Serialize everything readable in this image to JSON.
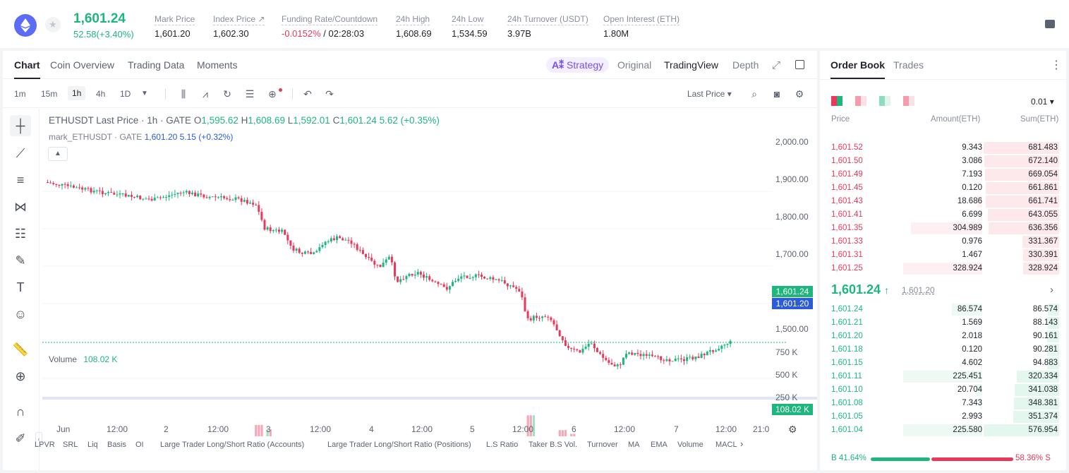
{
  "ticker": {
    "last_price": "1,601.24",
    "change": "52.58(+3.40%)",
    "stats": [
      {
        "label": "Mark Price",
        "value": "1,601.20"
      },
      {
        "label": "Index Price ↗",
        "value": "1,602.30"
      },
      {
        "label": "Funding Rate/Countdown",
        "value_neg": "-0.0152%",
        "value": " / 02:28:03"
      },
      {
        "label": "24h High",
        "value": "1,608.69"
      },
      {
        "label": "24h Low",
        "value": "1,534.59"
      },
      {
        "label": "24h Turnover (USDT)",
        "value": "3.97B"
      },
      {
        "label": "Open Interest (ETH)",
        "value": "1.80M"
      }
    ]
  },
  "chart_tabs": [
    "Chart",
    "Coin Overview",
    "Trading Data",
    "Moments"
  ],
  "strategy_label": "Strategy",
  "view_tabs": [
    "Original",
    "TradingView",
    "Depth"
  ],
  "timeframes": [
    "1m",
    "15m",
    "1h",
    "4h",
    "1D"
  ],
  "price_type": "Last Price",
  "legend": {
    "symbol": "ETHUSDT Last Price · 1h · GATE",
    "o_label": "O",
    "o": "1,595.62",
    "h_label": "H",
    "h": "1,608.69",
    "l_label": "L",
    "l": "1,592.01",
    "c_label": "C",
    "c": "1,601.24",
    "chg": "5.62 (+0.35%)",
    "mark_text": "mark_ETHUSDT · GATE",
    "mark_vals": "1,601.20  5.15  (+0.32%)"
  },
  "volume_legend": {
    "label": "Volume",
    "value": "108.02 K"
  },
  "price_axis": [
    "2,000.00",
    "1,900.00",
    "1,800.00",
    "1,700.00",
    "1,500.00"
  ],
  "volume_axis": [
    "750 K",
    "500 K",
    "250 K"
  ],
  "price_tags": {
    "last": "1,601.24",
    "mark": "1,601.20",
    "volume": "108.02 K"
  },
  "time_axis": [
    "Jun",
    "12:00",
    "2",
    "12:00",
    "3",
    "12:00",
    "4",
    "12:00",
    "5",
    "12:00",
    "6",
    "12:00",
    "7",
    "12:00",
    "21:0"
  ],
  "indicators": [
    "LPVR",
    "SRL",
    "Liq",
    "Basis",
    "OI",
    "Large Trader Long/Short Ratio (Accounts)",
    "Large Trader Long/Short Ratio (Positions)",
    "L.S Ratio",
    "Taker B.S Vol.",
    "Turnover",
    "MA",
    "EMA",
    "Volume",
    "MACL"
  ],
  "order_book": {
    "tabs": [
      "Order Book",
      "Trades"
    ],
    "precision": "0.01",
    "headers": [
      "Price",
      "Amount(ETH)",
      "Sum(ETH)"
    ],
    "asks": [
      {
        "price": "1,601.52",
        "amount": "9.343",
        "sum": "681.483",
        "depth": 1.0,
        "amt": 0.03
      },
      {
        "price": "1,601.50",
        "amount": "3.086",
        "sum": "672.140",
        "depth": 0.99,
        "amt": 0.01
      },
      {
        "price": "1,601.49",
        "amount": "7.193",
        "sum": "669.054",
        "depth": 0.98,
        "amt": 0.02
      },
      {
        "price": "1,601.45",
        "amount": "0.120",
        "sum": "661.861",
        "depth": 0.97,
        "amt": 0.0
      },
      {
        "price": "1,601.43",
        "amount": "18.686",
        "sum": "661.741",
        "depth": 0.97,
        "amt": 0.06
      },
      {
        "price": "1,601.41",
        "amount": "6.699",
        "sum": "643.055",
        "depth": 0.94,
        "amt": 0.02
      },
      {
        "price": "1,601.35",
        "amount": "304.989",
        "sum": "636.356",
        "depth": 0.93,
        "amt": 0.9
      },
      {
        "price": "1,601.33",
        "amount": "0.976",
        "sum": "331.367",
        "depth": 0.49,
        "amt": 0.0
      },
      {
        "price": "1,601.31",
        "amount": "1.467",
        "sum": "330.391",
        "depth": 0.48,
        "amt": 0.0
      },
      {
        "price": "1,601.25",
        "amount": "328.924",
        "sum": "328.924",
        "depth": 0.48,
        "amt": 1.0
      }
    ],
    "mid_price": "1,601.24",
    "mid_arrow": "↑",
    "mark_price": "1,601.20",
    "bids": [
      {
        "price": "1,601.24",
        "amount": "86.574",
        "sum": "86.574",
        "depth": 0.15,
        "amt": 0.38
      },
      {
        "price": "1,601.21",
        "amount": "1.569",
        "sum": "88.143",
        "depth": 0.15,
        "amt": 0.01
      },
      {
        "price": "1,601.20",
        "amount": "2.018",
        "sum": "90.161",
        "depth": 0.16,
        "amt": 0.01
      },
      {
        "price": "1,601.18",
        "amount": "0.120",
        "sum": "90.281",
        "depth": 0.16,
        "amt": 0.0
      },
      {
        "price": "1,601.15",
        "amount": "4.602",
        "sum": "94.883",
        "depth": 0.16,
        "amt": 0.02
      },
      {
        "price": "1,601.11",
        "amount": "225.451",
        "sum": "320.334",
        "depth": 0.56,
        "amt": 1.0
      },
      {
        "price": "1,601.10",
        "amount": "20.704",
        "sum": "341.038",
        "depth": 0.59,
        "amt": 0.09
      },
      {
        "price": "1,601.08",
        "amount": "7.343",
        "sum": "348.381",
        "depth": 0.6,
        "amt": 0.03
      },
      {
        "price": "1,601.05",
        "amount": "2.993",
        "sum": "351.374",
        "depth": 0.61,
        "amt": 0.01
      },
      {
        "price": "1,601.04",
        "amount": "225.580",
        "sum": "576.954",
        "depth": 1.0,
        "amt": 1.0
      }
    ],
    "buy_ratio": "B 41.64%",
    "sell_ratio": "58.36% S",
    "buy_fraction": 0.4164
  },
  "colors": {
    "up": "#1db77e",
    "down": "#e8395c",
    "accent": "#2b5bd7"
  }
}
